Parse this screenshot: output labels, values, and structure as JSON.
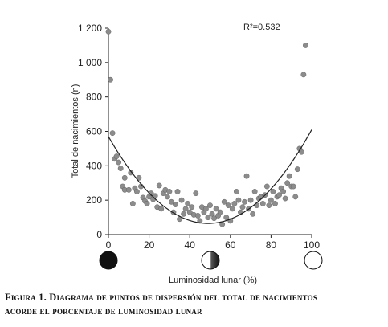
{
  "chart_data": {
    "type": "scatter",
    "title": "",
    "xlabel": "Luminosidad lunar (%)",
    "ylabel": "Total de nacimientos (n)",
    "xlim": [
      0,
      100
    ],
    "ylim": [
      0,
      1200
    ],
    "x_ticks": [
      0,
      20,
      40,
      60,
      80,
      100
    ],
    "x_tick_labels": [
      "0",
      "20",
      "40",
      "60",
      "80",
      "100"
    ],
    "y_ticks": [
      0,
      200,
      400,
      600,
      800,
      1000,
      1200
    ],
    "y_tick_labels": [
      "0",
      "200",
      "400",
      "600",
      "800",
      "1 000",
      "1 200"
    ],
    "grid": false,
    "annotation": "R²=0.532",
    "marker_color": "#8c8c8c",
    "line_color": "#222222",
    "trendline": {
      "type": "polynomial",
      "coefficients": [
        570,
        -20.6,
        0.21
      ]
    },
    "moon_phases": [
      "new-moon",
      "half-moon",
      "full-moon"
    ],
    "points": [
      {
        "x": 0,
        "y": 1180
      },
      {
        "x": 1,
        "y": 900
      },
      {
        "x": 2,
        "y": 590
      },
      {
        "x": 3,
        "y": 440
      },
      {
        "x": 4,
        "y": 455
      },
      {
        "x": 5,
        "y": 420
      },
      {
        "x": 6,
        "y": 385
      },
      {
        "x": 7,
        "y": 280
      },
      {
        "x": 8,
        "y": 330
      },
      {
        "x": 8,
        "y": 260
      },
      {
        "x": 10,
        "y": 260
      },
      {
        "x": 11,
        "y": 360
      },
      {
        "x": 12,
        "y": 180
      },
      {
        "x": 13,
        "y": 270
      },
      {
        "x": 14,
        "y": 250
      },
      {
        "x": 15,
        "y": 330
      },
      {
        "x": 16,
        "y": 280
      },
      {
        "x": 17,
        "y": 215
      },
      {
        "x": 18,
        "y": 195
      },
      {
        "x": 19,
        "y": 180
      },
      {
        "x": 20,
        "y": 220
      },
      {
        "x": 21,
        "y": 240
      },
      {
        "x": 22,
        "y": 205
      },
      {
        "x": 23,
        "y": 225
      },
      {
        "x": 24,
        "y": 160
      },
      {
        "x": 25,
        "y": 285
      },
      {
        "x": 26,
        "y": 150
      },
      {
        "x": 27,
        "y": 240
      },
      {
        "x": 28,
        "y": 260
      },
      {
        "x": 29,
        "y": 220
      },
      {
        "x": 30,
        "y": 250
      },
      {
        "x": 31,
        "y": 190
      },
      {
        "x": 32,
        "y": 130
      },
      {
        "x": 33,
        "y": 175
      },
      {
        "x": 34,
        "y": 250
      },
      {
        "x": 35,
        "y": 90
      },
      {
        "x": 36,
        "y": 200
      },
      {
        "x": 37,
        "y": 120
      },
      {
        "x": 38,
        "y": 150
      },
      {
        "x": 39,
        "y": 180
      },
      {
        "x": 40,
        "y": 130
      },
      {
        "x": 41,
        "y": 160
      },
      {
        "x": 42,
        "y": 115
      },
      {
        "x": 43,
        "y": 240
      },
      {
        "x": 44,
        "y": 110
      },
      {
        "x": 45,
        "y": 80
      },
      {
        "x": 46,
        "y": 160
      },
      {
        "x": 47,
        "y": 130
      },
      {
        "x": 48,
        "y": 150
      },
      {
        "x": 49,
        "y": 100
      },
      {
        "x": 50,
        "y": 170
      },
      {
        "x": 51,
        "y": 120
      },
      {
        "x": 52,
        "y": 95
      },
      {
        "x": 53,
        "y": 150
      },
      {
        "x": 54,
        "y": 110
      },
      {
        "x": 55,
        "y": 130
      },
      {
        "x": 56,
        "y": 60
      },
      {
        "x": 57,
        "y": 190
      },
      {
        "x": 58,
        "y": 100
      },
      {
        "x": 59,
        "y": 170
      },
      {
        "x": 60,
        "y": 80
      },
      {
        "x": 61,
        "y": 150
      },
      {
        "x": 62,
        "y": 180
      },
      {
        "x": 63,
        "y": 250
      },
      {
        "x": 64,
        "y": 200
      },
      {
        "x": 65,
        "y": 130
      },
      {
        "x": 66,
        "y": 160
      },
      {
        "x": 67,
        "y": 190
      },
      {
        "x": 68,
        "y": 340
      },
      {
        "x": 69,
        "y": 150
      },
      {
        "x": 70,
        "y": 200
      },
      {
        "x": 71,
        "y": 120
      },
      {
        "x": 72,
        "y": 250
      },
      {
        "x": 73,
        "y": 170
      },
      {
        "x": 74,
        "y": 210
      },
      {
        "x": 75,
        "y": 220
      },
      {
        "x": 76,
        "y": 180
      },
      {
        "x": 77,
        "y": 230
      },
      {
        "x": 78,
        "y": 280
      },
      {
        "x": 79,
        "y": 170
      },
      {
        "x": 80,
        "y": 200
      },
      {
        "x": 81,
        "y": 250
      },
      {
        "x": 82,
        "y": 180
      },
      {
        "x": 83,
        "y": 220
      },
      {
        "x": 84,
        "y": 230
      },
      {
        "x": 85,
        "y": 270
      },
      {
        "x": 86,
        "y": 250
      },
      {
        "x": 87,
        "y": 210
      },
      {
        "x": 88,
        "y": 300
      },
      {
        "x": 89,
        "y": 340
      },
      {
        "x": 90,
        "y": 280
      },
      {
        "x": 91,
        "y": 280
      },
      {
        "x": 92,
        "y": 220
      },
      {
        "x": 93,
        "y": 380
      },
      {
        "x": 94,
        "y": 500
      },
      {
        "x": 95,
        "y": 480
      },
      {
        "x": 96,
        "y": 930
      },
      {
        "x": 97,
        "y": 1100
      }
    ]
  },
  "caption": {
    "line1": "Figura 1. Diagrama de puntos de dispersión del total de nacimientos",
    "line2": "acorde el porcentaje de luminosidad lunar"
  }
}
